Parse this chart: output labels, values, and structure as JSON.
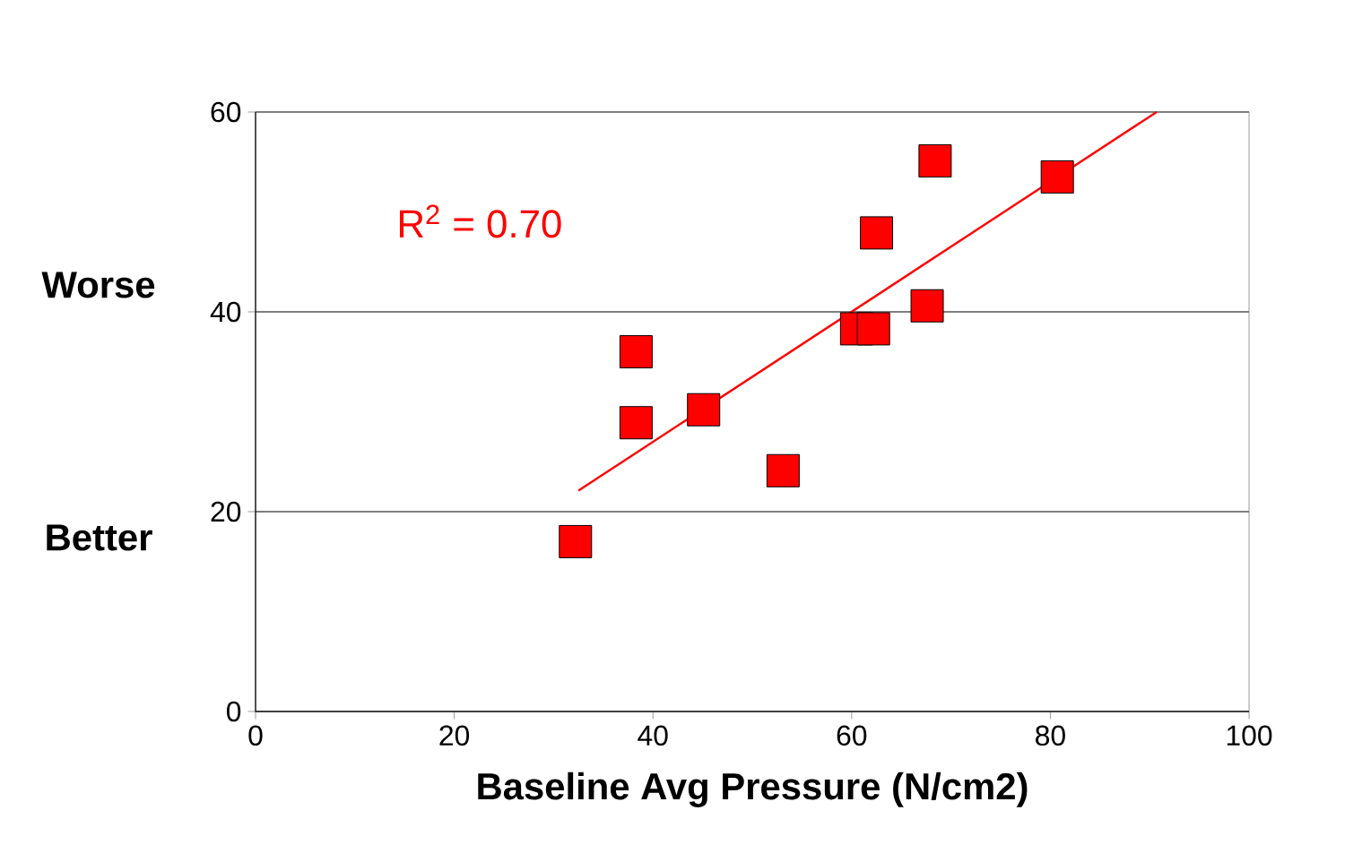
{
  "chart_data": {
    "type": "scatter",
    "xlabel": "Baseline Avg Pressure (N/cm2)",
    "xlim": [
      0,
      100
    ],
    "ylim": [
      0,
      60
    ],
    "xticks": [
      0,
      20,
      40,
      60,
      80,
      100
    ],
    "yticks": [
      0,
      20,
      40,
      60
    ],
    "grid": "y",
    "series": [
      {
        "marker": "square",
        "color": "#ff0000",
        "x": [
          32.2,
          38.3,
          38.3,
          45.1,
          53.1,
          60.5,
          62.2,
          62.5,
          67.6,
          68.4,
          80.7
        ],
        "values": [
          17.0,
          36.0,
          28.9,
          30.2,
          24.1,
          38.3,
          38.3,
          47.9,
          40.6,
          55.1,
          53.5
        ]
      },
      {
        "type": "line",
        "marker": "none",
        "color": "#ff0000",
        "x": [
          32.5,
          90.7
        ],
        "values": [
          22.1,
          60.0
        ]
      }
    ],
    "annotations": [
      "Worse",
      "Better",
      "R$^{2}$ = 0.70"
    ]
  }
}
